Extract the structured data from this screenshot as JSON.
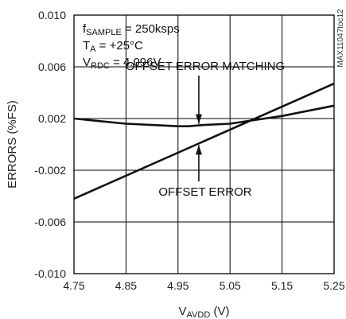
{
  "chart_data": {
    "type": "line",
    "title": "",
    "xlabel": {
      "main": "V",
      "sub": "AVDD",
      "unit": " (V)"
    },
    "ylabel": "ERRORS (%FS)",
    "xlim": [
      4.75,
      5.25
    ],
    "ylim": [
      -0.01,
      0.01
    ],
    "x_ticks": [
      4.75,
      4.85,
      4.95,
      5.05,
      5.15,
      5.25
    ],
    "x_tick_labels": [
      "4.75",
      "4.85",
      "4.95",
      "5.05",
      "5.15",
      "5.25"
    ],
    "y_ticks": [
      0.01,
      0.006,
      0.002,
      -0.002,
      -0.006,
      -0.01
    ],
    "y_tick_labels": [
      "0.010",
      "0.006",
      "0.002",
      "-0.002",
      "-0.006",
      "-0.010"
    ],
    "grid": true,
    "series": [
      {
        "name": "OFFSET ERROR MATCHING",
        "x": [
          4.75,
          4.8,
          4.85,
          4.9,
          4.95,
          4.97,
          5.0,
          5.05,
          5.1,
          5.15,
          5.2,
          5.25
        ],
        "y": [
          0.002,
          0.0018,
          0.0016,
          0.0015,
          0.0014,
          0.0014,
          0.0015,
          0.0016,
          0.0019,
          0.0022,
          0.0026,
          0.003
        ]
      },
      {
        "name": "OFFSET ERROR",
        "x": [
          4.75,
          5.25
        ],
        "y": [
          -0.0042,
          0.0047
        ]
      }
    ],
    "conditions": [
      {
        "main": "f",
        "sub": "SAMPLE",
        "rest": " = 250ksps"
      },
      {
        "main": "T",
        "sub": "A",
        "rest": " = +25°C"
      },
      {
        "main": "V",
        "sub": "RDC",
        "rest": " = 4.096V"
      }
    ],
    "annotations": [
      {
        "text": "OFFSET ERROR MATCHING",
        "series": 0,
        "x": 4.99
      },
      {
        "text": "OFFSET ERROR",
        "series": 1,
        "x": 4.99
      }
    ],
    "watermark": "MAX11047toc12"
  }
}
